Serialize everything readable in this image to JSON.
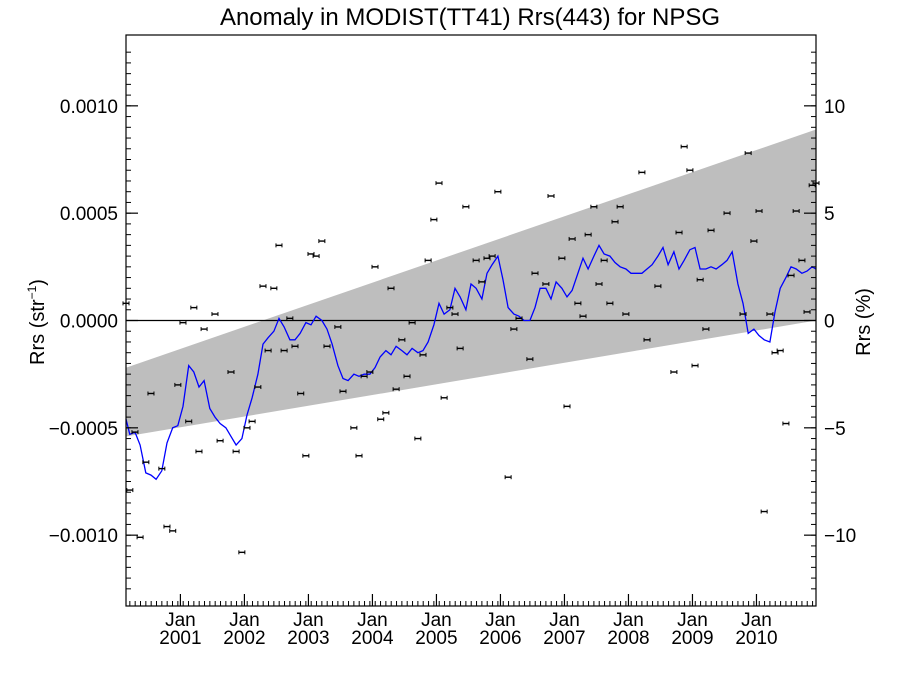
{
  "chart_data": {
    "type": "scatter",
    "title": "Anomaly in MODIST(TT41) Rrs(443) for NPSG",
    "ylabel_left": "Rrs (str",
    "ylabel_left_sup": "−1",
    "ylabel_left_close": ")",
    "ylabel_right": "Rrs (%)",
    "xlim": [
      2000.15,
      2010.93
    ],
    "ylim": [
      -0.00133,
      0.00133
    ],
    "y2lim": [
      -13.3,
      13.3
    ],
    "x_tick_labels": [
      {
        "x": 2001.0,
        "month": "Jan",
        "year": "2001"
      },
      {
        "x": 2002.0,
        "month": "Jan",
        "year": "2002"
      },
      {
        "x": 2003.0,
        "month": "Jan",
        "year": "2003"
      },
      {
        "x": 2004.0,
        "month": "Jan",
        "year": "2004"
      },
      {
        "x": 2005.0,
        "month": "Jan",
        "year": "2005"
      },
      {
        "x": 2006.0,
        "month": "Jan",
        "year": "2006"
      },
      {
        "x": 2007.0,
        "month": "Jan",
        "year": "2007"
      },
      {
        "x": 2008.0,
        "month": "Jan",
        "year": "2008"
      },
      {
        "x": 2009.0,
        "month": "Jan",
        "year": "2009"
      },
      {
        "x": 2010.0,
        "month": "Jan",
        "year": "2010"
      }
    ],
    "y_ticks": [
      {
        "v": 0.001,
        "label": "0.0010"
      },
      {
        "v": 0.0005,
        "label": "0.0005"
      },
      {
        "v": 0.0,
        "label": "0.0000"
      },
      {
        "v": -0.0005,
        "label": "−0.0005"
      },
      {
        "v": -0.001,
        "label": "−0.0010"
      }
    ],
    "y2_ticks": [
      {
        "v": 10,
        "label": "10"
      },
      {
        "v": 5,
        "label": "5"
      },
      {
        "v": 0,
        "label": "0"
      },
      {
        "v": -5,
        "label": "−5"
      },
      {
        "v": -10,
        "label": "−10"
      }
    ],
    "zero_line": 0,
    "band": {
      "x_start": 2000.15,
      "x_end": 2010.93,
      "lower_start": -0.00054,
      "lower_end": 0.0,
      "upper_start": -0.00022,
      "upper_end": 0.00089,
      "color": "#bebebe"
    },
    "series": [
      {
        "type": "scatter",
        "color": "#000000",
        "x": [
          2000.15,
          2000.21,
          2000.29,
          2000.37,
          2000.46,
          2000.54,
          2000.71,
          2000.79,
          2000.88,
          2000.96,
          2001.04,
          2001.13,
          2001.21,
          2001.29,
          2001.37,
          2001.54,
          2001.62,
          2001.79,
          2001.87,
          2001.96,
          2002.04,
          2002.12,
          2002.21,
          2002.29,
          2002.37,
          2002.46,
          2002.54,
          2002.62,
          2002.71,
          2002.79,
          2002.88,
          2002.96,
          2003.04,
          2003.12,
          2003.21,
          2003.29,
          2003.46,
          2003.54,
          2003.71,
          2003.79,
          2003.87,
          2003.96,
          2004.04,
          2004.13,
          2004.21,
          2004.29,
          2004.37,
          2004.46,
          2004.54,
          2004.62,
          2004.71,
          2004.79,
          2004.87,
          2004.96,
          2005.04,
          2005.12,
          2005.21,
          2005.29,
          2005.37,
          2005.46,
          2005.62,
          2005.71,
          2005.79,
          2005.87,
          2005.96,
          2006.12,
          2006.21,
          2006.29,
          2006.46,
          2006.54,
          2006.71,
          2006.79,
          2006.96,
          2007.04,
          2007.12,
          2007.21,
          2007.29,
          2007.37,
          2007.46,
          2007.54,
          2007.62,
          2007.71,
          2007.79,
          2007.87,
          2007.96,
          2008.21,
          2008.29,
          2008.46,
          2008.71,
          2008.79,
          2008.87,
          2008.96,
          2009.04,
          2009.12,
          2009.21,
          2009.29,
          2009.54,
          2009.79,
          2009.87,
          2009.96,
          2010.04,
          2010.12,
          2010.21,
          2010.29,
          2010.37,
          2010.46,
          2010.54,
          2010.62,
          2010.71,
          2010.79,
          2010.87,
          2010.93
        ],
        "y": [
          8e-05,
          -0.00079,
          -0.00052,
          -0.00101,
          -0.00066,
          -0.00034,
          -0.00069,
          -0.00096,
          -0.00098,
          -0.0003,
          -1e-05,
          -0.00047,
          6e-05,
          -0.00061,
          -4e-05,
          3e-05,
          -0.00056,
          -0.00024,
          -0.00061,
          -0.00108,
          -0.0005,
          -0.00047,
          -0.00031,
          0.00016,
          -0.00014,
          0.00015,
          0.00035,
          -0.00014,
          1e-05,
          -0.00012,
          -0.00034,
          -0.00063,
          0.00031,
          0.0003,
          0.00037,
          -0.00012,
          -3e-05,
          -0.00033,
          -0.0005,
          -0.00063,
          -0.00026,
          -0.00024,
          0.00025,
          -0.00046,
          -0.00043,
          0.00015,
          -0.00032,
          -9e-05,
          -0.00026,
          -1e-05,
          -0.00055,
          -0.00016,
          0.00028,
          0.00047,
          0.00064,
          -0.00036,
          6e-05,
          3e-05,
          -0.00013,
          0.00053,
          0.00028,
          0.00018,
          0.00029,
          0.0003,
          0.0006,
          -0.00073,
          -4e-05,
          1e-05,
          -0.00018,
          0.00022,
          0.00017,
          0.00058,
          0.00029,
          -0.0004,
          0.00038,
          8e-05,
          2e-05,
          0.0004,
          0.00053,
          0.00017,
          0.00028,
          8e-05,
          0.00046,
          0.00053,
          3e-05,
          0.00069,
          -9e-05,
          0.00016,
          -0.00024,
          0.00041,
          0.00081,
          0.0007,
          -0.00021,
          0.00019,
          -4e-05,
          0.00042,
          0.0005,
          3e-05,
          0.00078,
          0.00037,
          0.00051,
          -0.00089,
          3e-05,
          -0.00015,
          -0.00014,
          -0.00048,
          0.00021,
          0.00051,
          0.00028,
          4e-05,
          0.00063,
          0.00064
        ]
      },
      {
        "type": "line",
        "color": "#0000ff",
        "x": [
          2000.15,
          2000.21,
          2000.29,
          2000.37,
          2000.46,
          2000.54,
          2000.62,
          2000.71,
          2000.79,
          2000.88,
          2000.96,
          2001.04,
          2001.13,
          2001.21,
          2001.29,
          2001.37,
          2001.46,
          2001.54,
          2001.62,
          2001.71,
          2001.79,
          2001.87,
          2001.96,
          2002.04,
          2002.12,
          2002.21,
          2002.29,
          2002.37,
          2002.46,
          2002.54,
          2002.62,
          2002.71,
          2002.79,
          2002.87,
          2002.96,
          2003.04,
          2003.12,
          2003.21,
          2003.29,
          2003.37,
          2003.46,
          2003.54,
          2003.62,
          2003.71,
          2003.79,
          2003.87,
          2003.96,
          2004.04,
          2004.12,
          2004.21,
          2004.29,
          2004.37,
          2004.46,
          2004.54,
          2004.62,
          2004.71,
          2004.79,
          2004.87,
          2004.96,
          2005.04,
          2005.12,
          2005.21,
          2005.29,
          2005.37,
          2005.46,
          2005.54,
          2005.62,
          2005.71,
          2005.79,
          2005.87,
          2005.96,
          2006.04,
          2006.12,
          2006.21,
          2006.29,
          2006.37,
          2006.46,
          2006.54,
          2006.62,
          2006.71,
          2006.79,
          2006.87,
          2006.96,
          2007.04,
          2007.12,
          2007.21,
          2007.29,
          2007.37,
          2007.46,
          2007.54,
          2007.62,
          2007.71,
          2007.79,
          2007.87,
          2007.96,
          2008.04,
          2008.12,
          2008.21,
          2008.29,
          2008.37,
          2008.46,
          2008.54,
          2008.62,
          2008.71,
          2008.79,
          2008.87,
          2008.96,
          2009.04,
          2009.12,
          2009.21,
          2009.29,
          2009.37,
          2009.46,
          2009.54,
          2009.62,
          2009.71,
          2009.79,
          2009.87,
          2009.96,
          2010.04,
          2010.12,
          2010.21,
          2010.29,
          2010.37,
          2010.46,
          2010.54,
          2010.62,
          2010.71,
          2010.79,
          2010.87,
          2010.93
        ],
        "y": [
          -0.00046,
          -0.00053,
          -0.00052,
          -0.00058,
          -0.00071,
          -0.00072,
          -0.00074,
          -0.0007,
          -0.00057,
          -0.0005,
          -0.00049,
          -0.0004,
          -0.00021,
          -0.00024,
          -0.00031,
          -0.00028,
          -0.00041,
          -0.00045,
          -0.00048,
          -0.0005,
          -0.00054,
          -0.00058,
          -0.00055,
          -0.00044,
          -0.00036,
          -0.00025,
          -0.00011,
          -8e-05,
          -5e-05,
          1e-05,
          -3e-05,
          -9e-05,
          -9e-05,
          -6e-05,
          -1e-05,
          -2e-05,
          2e-05,
          0.0,
          -4e-05,
          -0.00011,
          -0.00021,
          -0.00027,
          -0.00028,
          -0.00025,
          -0.00026,
          -0.00025,
          -0.00025,
          -0.00022,
          -0.00017,
          -0.00014,
          -0.00016,
          -0.00012,
          -0.00014,
          -0.00016,
          -0.00013,
          -0.00015,
          -0.00014,
          -0.0001,
          -2e-05,
          8e-05,
          3e-05,
          5e-05,
          0.00015,
          0.00011,
          5e-05,
          0.00017,
          0.00015,
          0.0001,
          0.00022,
          0.00026,
          0.0003,
          0.00019,
          6e-05,
          3e-05,
          2e-05,
          0.0,
          0.0,
          6e-05,
          0.00015,
          0.00015,
          0.0001,
          0.00018,
          0.00015,
          0.00011,
          0.00014,
          0.00022,
          0.00029,
          0.00024,
          0.0003,
          0.00035,
          0.00031,
          0.0003,
          0.00027,
          0.00025,
          0.00024,
          0.00022,
          0.00022,
          0.00022,
          0.00024,
          0.00026,
          0.0003,
          0.00034,
          0.00026,
          0.00032,
          0.00024,
          0.00028,
          0.00033,
          0.00034,
          0.00024,
          0.00024,
          0.00025,
          0.00024,
          0.00026,
          0.00028,
          0.00032,
          0.00017,
          8e-05,
          -6e-05,
          -4e-05,
          -7e-05,
          -9e-05,
          -0.0001,
          4e-05,
          0.00015,
          0.0002,
          0.00025,
          0.00024,
          0.00022,
          0.00023,
          0.00025,
          0.00024
        ]
      }
    ]
  }
}
